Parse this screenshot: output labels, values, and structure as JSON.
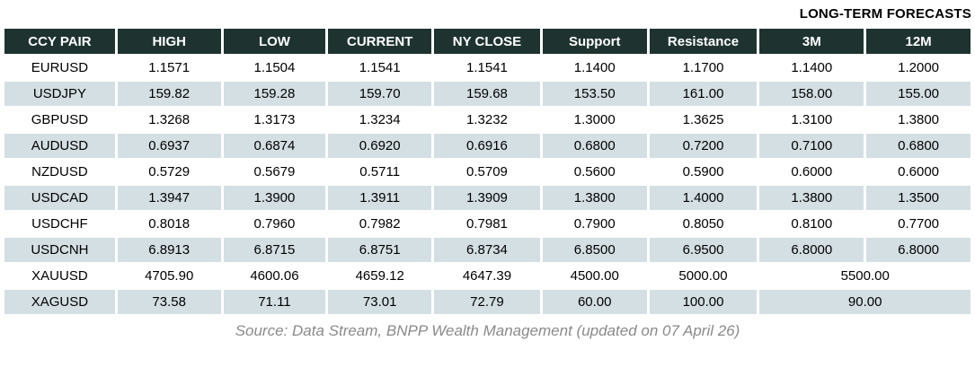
{
  "title": "LONG-TERM FORECASTS",
  "source": "Source: Data Stream, BNPP Wealth Management (updated on 07 April 26)",
  "colors": {
    "header_bg": "#1E3330",
    "header_text": "#FFFFFF",
    "row_alt_bg": "#D4DFE3",
    "row_bg": "#FFFFFF",
    "title_text": "#000000",
    "source_text": "#8A8A8A"
  },
  "table": {
    "columns": [
      "CCY PAIR",
      "HIGH",
      "LOW",
      "CURRENT",
      "NY CLOSE",
      "Support",
      "Resistance",
      "3M",
      "12M"
    ],
    "rows": [
      {
        "pair": "EURUSD",
        "cells": [
          "1.1571",
          "1.1504",
          "1.1541",
          "1.1541",
          "1.1400",
          "1.1700",
          "1.1400",
          "1.2000"
        ],
        "merged_forecast": null
      },
      {
        "pair": "USDJPY",
        "cells": [
          "159.82",
          "159.28",
          "159.70",
          "159.68",
          "153.50",
          "161.00",
          "158.00",
          "155.00"
        ],
        "merged_forecast": null
      },
      {
        "pair": "GBPUSD",
        "cells": [
          "1.3268",
          "1.3173",
          "1.3234",
          "1.3232",
          "1.3000",
          "1.3625",
          "1.3100",
          "1.3800"
        ],
        "merged_forecast": null
      },
      {
        "pair": "AUDUSD",
        "cells": [
          "0.6937",
          "0.6874",
          "0.6920",
          "0.6916",
          "0.6800",
          "0.7200",
          "0.7100",
          "0.6800"
        ],
        "merged_forecast": null
      },
      {
        "pair": "NZDUSD",
        "cells": [
          "0.5729",
          "0.5679",
          "0.5711",
          "0.5709",
          "0.5600",
          "0.5900",
          "0.6000",
          "0.6000"
        ],
        "merged_forecast": null
      },
      {
        "pair": "USDCAD",
        "cells": [
          "1.3947",
          "1.3900",
          "1.3911",
          "1.3909",
          "1.3800",
          "1.4000",
          "1.3800",
          "1.3500"
        ],
        "merged_forecast": null
      },
      {
        "pair": "USDCHF",
        "cells": [
          "0.8018",
          "0.7960",
          "0.7982",
          "0.7981",
          "0.7900",
          "0.8050",
          "0.8100",
          "0.7700"
        ],
        "merged_forecast": null
      },
      {
        "pair": "USDCNH",
        "cells": [
          "6.8913",
          "6.8715",
          "6.8751",
          "6.8734",
          "6.8500",
          "6.9500",
          "6.8000",
          "6.8000"
        ],
        "merged_forecast": null
      },
      {
        "pair": "XAUUSD",
        "cells": [
          "4705.90",
          "4600.06",
          "4659.12",
          "4647.39",
          "4500.00",
          "5000.00"
        ],
        "merged_forecast": "5500.00"
      },
      {
        "pair": "XAGUSD",
        "cells": [
          "73.58",
          "71.11",
          "73.01",
          "72.79",
          "60.00",
          "100.00"
        ],
        "merged_forecast": "90.00"
      }
    ]
  }
}
